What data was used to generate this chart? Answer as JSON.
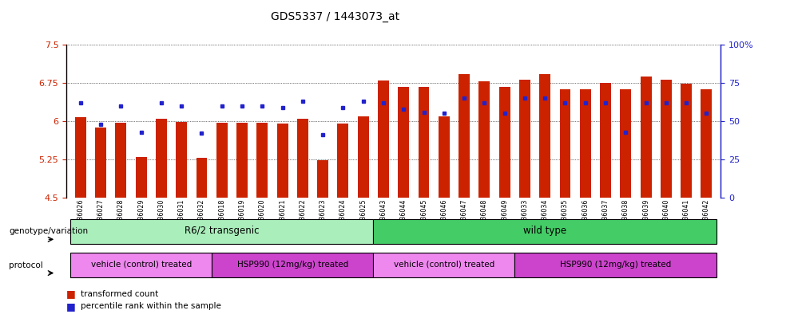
{
  "title": "GDS5337 / 1443073_at",
  "samples": [
    "GSM736026",
    "GSM736027",
    "GSM736028",
    "GSM736029",
    "GSM736030",
    "GSM736031",
    "GSM736032",
    "GSM736018",
    "GSM736019",
    "GSM736020",
    "GSM736021",
    "GSM736022",
    "GSM736023",
    "GSM736024",
    "GSM736025",
    "GSM736043",
    "GSM736044",
    "GSM736045",
    "GSM736046",
    "GSM736047",
    "GSM736048",
    "GSM736049",
    "GSM736033",
    "GSM736034",
    "GSM736035",
    "GSM736036",
    "GSM736037",
    "GSM736038",
    "GSM736039",
    "GSM736040",
    "GSM736041",
    "GSM736042"
  ],
  "red_values": [
    6.08,
    5.88,
    5.97,
    5.3,
    6.05,
    5.98,
    5.28,
    5.97,
    5.97,
    5.97,
    5.96,
    6.05,
    5.24,
    5.96,
    6.1,
    6.8,
    6.68,
    6.67,
    6.1,
    6.92,
    6.78,
    6.67,
    6.82,
    6.92,
    6.63,
    6.62,
    6.75,
    6.63,
    6.87,
    6.82,
    6.73,
    6.63
  ],
  "blue_values": [
    62,
    48,
    60,
    43,
    62,
    60,
    42,
    60,
    60,
    60,
    59,
    63,
    41,
    59,
    63,
    62,
    58,
    56,
    55,
    65,
    62,
    55,
    65,
    65,
    62,
    62,
    62,
    43,
    62,
    62,
    62,
    55
  ],
  "ymin": 4.5,
  "ymax": 7.5,
  "yticks_left": [
    4.5,
    5.25,
    6.0,
    6.75,
    7.5
  ],
  "yticks_right": [
    0,
    25,
    50,
    75,
    100
  ],
  "bar_color": "#cc2200",
  "blue_color": "#2222cc",
  "genotype_groups": [
    {
      "label": "R6/2 transgenic",
      "start": 0,
      "end": 14,
      "color": "#aaeebb"
    },
    {
      "label": "wild type",
      "start": 15,
      "end": 31,
      "color": "#44cc66"
    }
  ],
  "protocol_groups": [
    {
      "label": "vehicle (control) treated",
      "start": 0,
      "end": 6,
      "color": "#ee88ee"
    },
    {
      "label": "HSP990 (12mg/kg) treated",
      "start": 7,
      "end": 14,
      "color": "#cc44cc"
    },
    {
      "label": "vehicle (control) treated",
      "start": 15,
      "end": 21,
      "color": "#ee88ee"
    },
    {
      "label": "HSP990 (12mg/kg) treated",
      "start": 22,
      "end": 31,
      "color": "#cc44cc"
    }
  ]
}
